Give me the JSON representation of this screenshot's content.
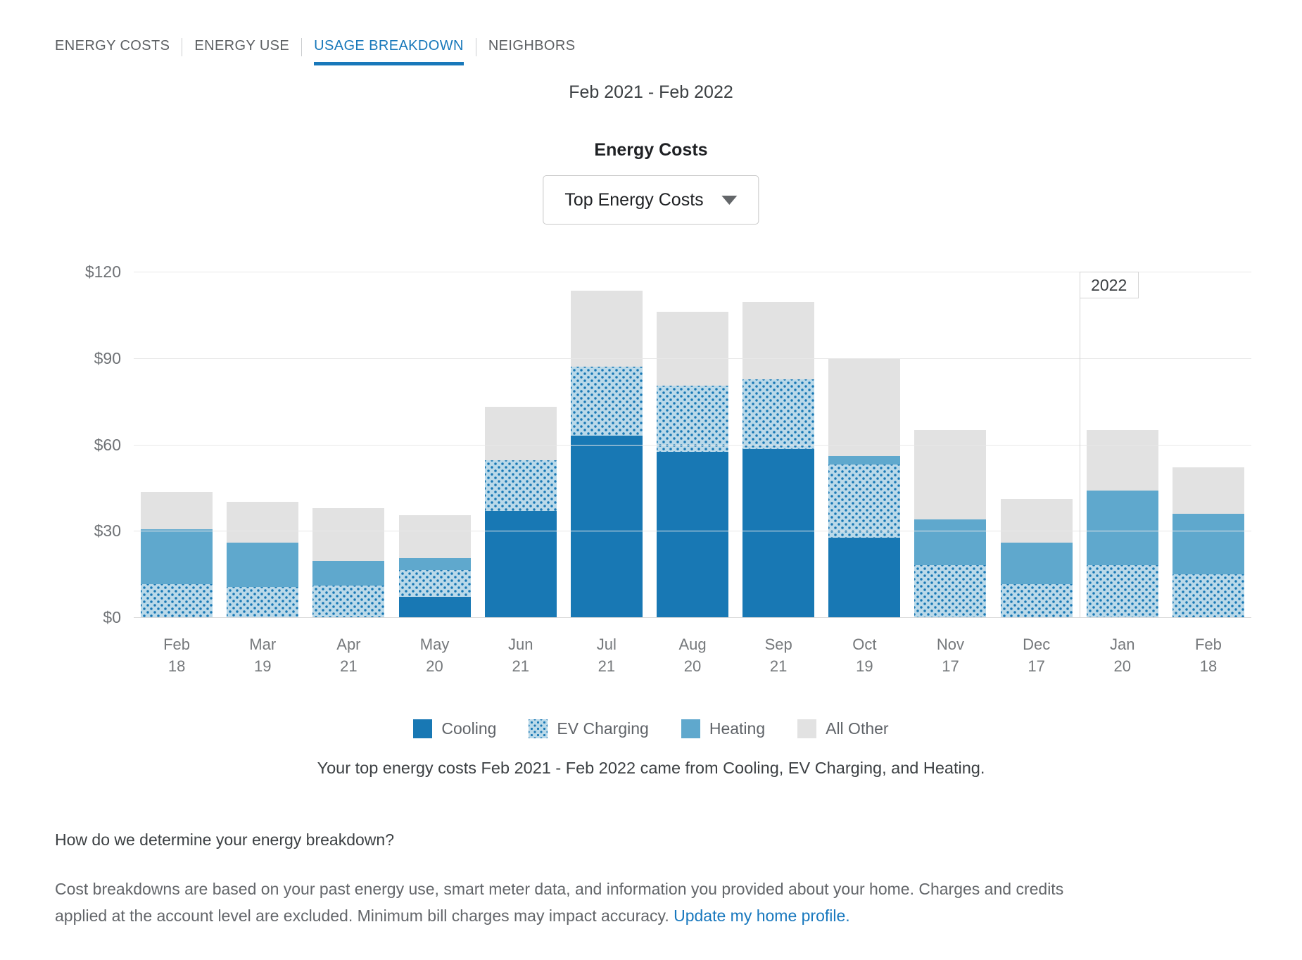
{
  "tabs": {
    "items": [
      {
        "label": "ENERGY COSTS",
        "active": false
      },
      {
        "label": "ENERGY USE",
        "active": false
      },
      {
        "label": "USAGE BREAKDOWN",
        "active": true
      },
      {
        "label": "NEIGHBORS",
        "active": false
      }
    ]
  },
  "date_range": "Feb 2021 - Feb 2022",
  "chart_header": {
    "title": "Energy Costs",
    "dropdown_value": "Top Energy Costs"
  },
  "chart_data": {
    "type": "bar",
    "stacked": true,
    "title": "Energy Costs",
    "categories": [
      [
        "Feb",
        "18"
      ],
      [
        "Mar",
        "19"
      ],
      [
        "Apr",
        "21"
      ],
      [
        "May",
        "20"
      ],
      [
        "Jun",
        "21"
      ],
      [
        "Jul",
        "21"
      ],
      [
        "Aug",
        "20"
      ],
      [
        "Sep",
        "21"
      ],
      [
        "Oct",
        "19"
      ],
      [
        "Nov",
        "17"
      ],
      [
        "Dec",
        "17"
      ],
      [
        "Jan",
        "20"
      ],
      [
        "Feb",
        "18"
      ]
    ],
    "series": [
      {
        "name": "Cooling",
        "color": "#1878b4",
        "pattern": "solid",
        "values": [
          0,
          0,
          0,
          7,
          37,
          63,
          57.5,
          58.5,
          27.5,
          0,
          0,
          0,
          0
        ]
      },
      {
        "name": "EV Charging",
        "color": "#1878b4",
        "pattern": "dotted",
        "pattern_bg": "#bad9e9",
        "values": [
          11.5,
          10.5,
          11,
          9.5,
          17.5,
          24,
          23,
          24,
          25.5,
          18,
          11.5,
          18,
          15
        ]
      },
      {
        "name": "Heating",
        "color": "#5fa8cd",
        "pattern": "solid",
        "values": [
          19,
          15.5,
          8.5,
          4,
          0,
          0,
          0,
          0,
          3,
          16,
          14.5,
          26,
          21
        ]
      },
      {
        "name": "All Other",
        "color": "#e2e2e2",
        "pattern": "solid",
        "values": [
          13,
          14,
          18.5,
          15,
          18.5,
          26.5,
          25.5,
          27,
          34,
          31,
          15,
          21,
          16
        ]
      }
    ],
    "totals": [
      43.5,
      40,
      38,
      35.5,
      73,
      113.5,
      106,
      109.5,
      90,
      65,
      41,
      65,
      52
    ],
    "xlabel": "",
    "ylabel": "",
    "ylim": [
      0,
      120
    ],
    "ytick_values": [
      0,
      30,
      60,
      90,
      120
    ],
    "yticks": [
      "$0",
      "$30",
      "$60",
      "$90",
      "$120"
    ],
    "grid": true,
    "legend_position": "bottom",
    "year_divider": {
      "after_index": 10,
      "label": "2022"
    }
  },
  "caption": "Your top energy costs Feb 2021 - Feb 2022 came from Cooling, EV Charging, and Heating.",
  "footer": {
    "heading": "How do we determine your energy breakdown?",
    "body": "Cost breakdowns are based on your past energy use, smart meter data, and information you provided about your home. Charges and credits applied at the account level are excluded. Minimum bill charges may impact accuracy.",
    "link_label": "Update my home profile."
  },
  "colors": {
    "accent_blue": "#1878ba",
    "cooling": "#1878b4",
    "ev_charging_bg": "#bad9e9",
    "heating": "#5fa8cd",
    "all_other": "#e2e2e2",
    "link": "#1878be"
  }
}
